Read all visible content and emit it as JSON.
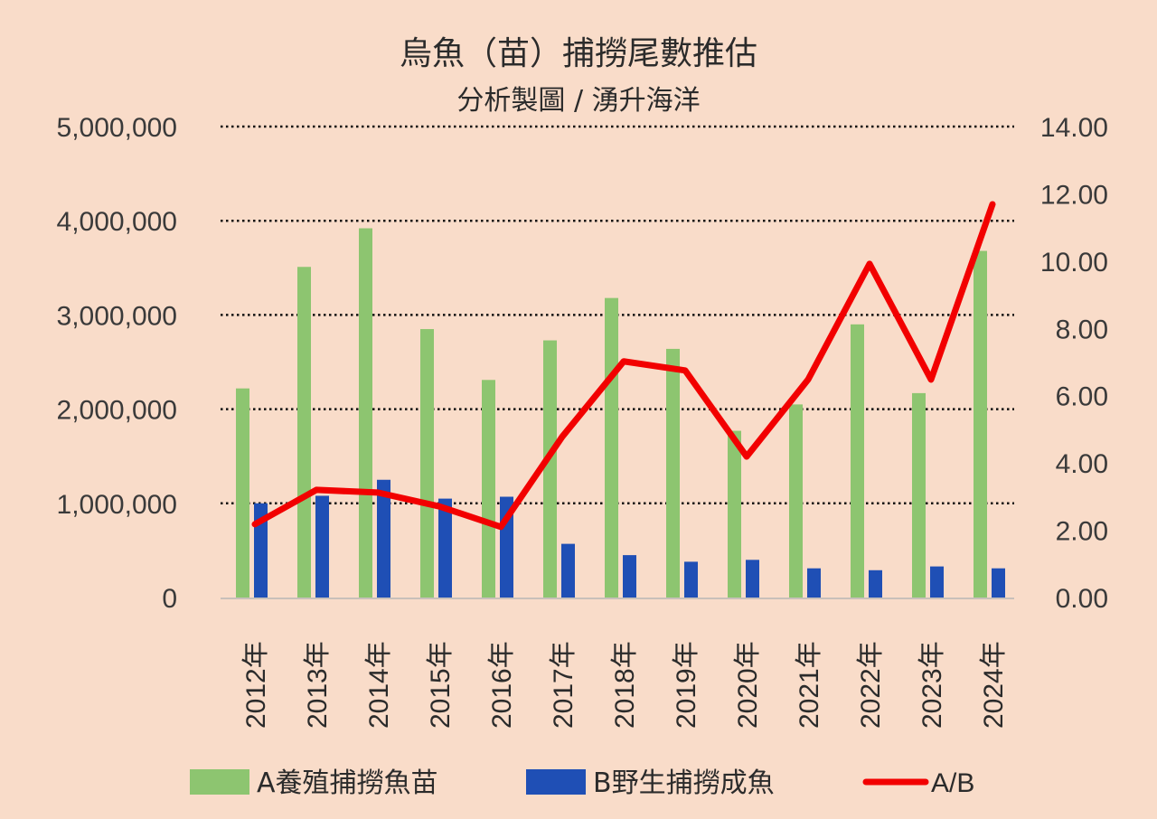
{
  "chart_data": {
    "type": "bar+line",
    "title": "烏魚（苗）捕撈尾數推估",
    "subtitle": "分析製圖 / 湧升海洋",
    "categories": [
      "2012年",
      "2013年",
      "2014年",
      "2015年",
      "2016年",
      "2017年",
      "2018年",
      "2019年",
      "2020年",
      "2021年",
      "2022年",
      "2023年",
      "2024年"
    ],
    "series": [
      {
        "name": "A養殖捕撈魚苗",
        "type": "bar",
        "axis": "left",
        "color": "#8dc570",
        "values": [
          2220000,
          3510000,
          3920000,
          2850000,
          2310000,
          2730000,
          3180000,
          2640000,
          1770000,
          2050000,
          2900000,
          2170000,
          3680000
        ]
      },
      {
        "name": "B野生捕撈成魚",
        "type": "bar",
        "axis": "left",
        "color": "#1f4fb5",
        "values": [
          1000000,
          1080000,
          1250000,
          1050000,
          1070000,
          570000,
          450000,
          380000,
          400000,
          310000,
          290000,
          330000,
          310000
        ]
      },
      {
        "name": "A/B",
        "type": "line",
        "axis": "right",
        "color": "#f20000",
        "values": [
          2.18,
          3.2,
          3.12,
          2.71,
          2.1,
          4.78,
          7.02,
          6.75,
          4.19,
          6.48,
          9.92,
          6.48,
          11.69
        ]
      }
    ],
    "left_axis": {
      "ylim": [
        0,
        5000000
      ],
      "ticks": [
        "0",
        "1,000,000",
        "2,000,000",
        "3,000,000",
        "4,000,000",
        "5,000,000"
      ]
    },
    "right_axis": {
      "ylim": [
        0,
        14
      ],
      "ticks": [
        "0.00",
        "2.00",
        "4.00",
        "6.00",
        "8.00",
        "10.00",
        "12.00",
        "14.00"
      ]
    },
    "grid": true,
    "legend": "bottom"
  }
}
